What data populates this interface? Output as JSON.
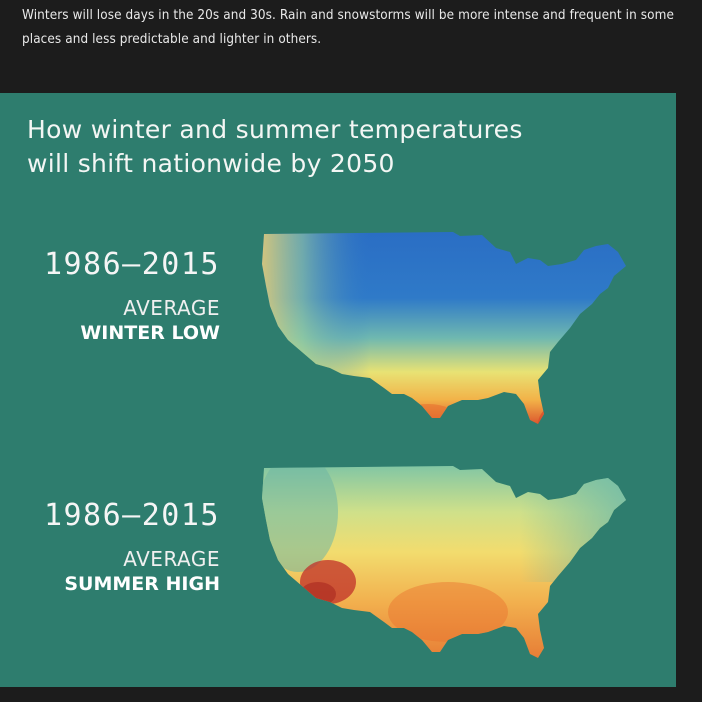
{
  "intro_text": "Winters will lose days in the 20s and 30s. Rain and snowstorms will be more intense and frequent in some places and less predictable and lighter in others.",
  "panel": {
    "title_line1": "How winter and summer temperatures",
    "title_line2": "will shift nationwide by 2050",
    "background_color": "#2e7d6e"
  },
  "maps": [
    {
      "years": "1986–2015",
      "average_label": "AVERAGE",
      "season_label": "WINTER LOW",
      "palette": [
        "#2a6fc0",
        "#4aa0c0",
        "#8ccba0",
        "#f0e070",
        "#f0a040",
        "#d84a2a"
      ]
    },
    {
      "years": "1986–2015",
      "average_label": "AVERAGE",
      "season_label": "SUMMER HIGH",
      "palette": [
        "#5fb0a8",
        "#b9dc8a",
        "#f2e070",
        "#f0b050",
        "#e07832",
        "#c0302a"
      ]
    }
  ]
}
